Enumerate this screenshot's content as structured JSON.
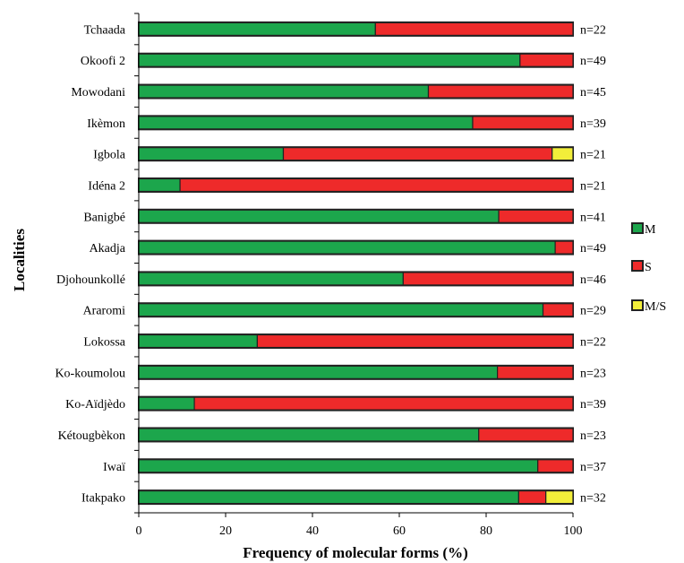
{
  "chart_data": {
    "type": "bar",
    "orientation": "horizontal",
    "stacked": true,
    "xlabel": "Frequency of molecular  forms (%)",
    "ylabel": "Localities",
    "xlim": [
      0,
      100
    ],
    "xticks": [
      "0",
      "20",
      "40",
      "60",
      "80",
      "100"
    ],
    "categories": [
      "Tchaada",
      "Okoofi 2",
      "Mowodani",
      "Ikèmon",
      "Igbola",
      "Idéna 2",
      "Banigbé",
      "Akadja",
      "Djohounkollé",
      "Araromi",
      "Lokossa",
      "Ko-koumolou",
      "Ko-Aïdjèdo",
      "Kétougbèkon",
      "Iwaï",
      "Itakpako"
    ],
    "n_labels": [
      "n=22",
      "n=49",
      "n=45",
      "n=39",
      "n=21",
      "n=21",
      "n=41",
      "n=49",
      "n=46",
      "n=29",
      "n=22",
      "n=23",
      "n=39",
      "n=23",
      "n=37",
      "n=32"
    ],
    "series": [
      {
        "name": "M",
        "color": "#1ca64c",
        "values": [
          54.5,
          87.8,
          66.7,
          76.9,
          33.3,
          9.5,
          82.9,
          95.9,
          60.9,
          93.1,
          27.3,
          82.6,
          12.8,
          78.3,
          91.9,
          87.5
        ]
      },
      {
        "name": "S",
        "color": "#ee2a2a",
        "values": [
          45.5,
          12.2,
          33.3,
          23.1,
          61.9,
          90.5,
          17.1,
          4.1,
          39.1,
          6.9,
          72.7,
          17.4,
          87.2,
          21.7,
          8.1,
          6.25
        ]
      },
      {
        "name": "M/S",
        "color": "#f2ee3a",
        "values": [
          0,
          0,
          0,
          0,
          4.8,
          0,
          0,
          0,
          0,
          0,
          0,
          0,
          0,
          0,
          0,
          6.25
        ]
      }
    ],
    "legend_position": "right",
    "grid": false
  }
}
